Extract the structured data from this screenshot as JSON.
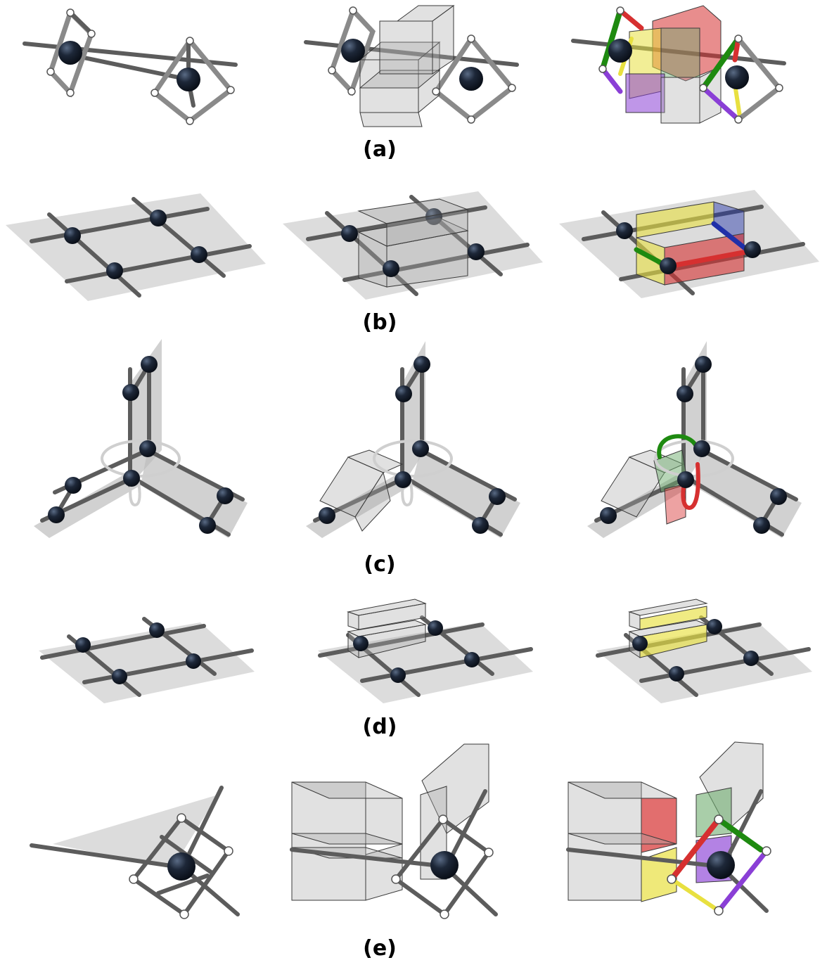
{
  "figure": {
    "rows": [
      {
        "id": "a",
        "label": "(a)"
      },
      {
        "id": "b",
        "label": "(b)"
      },
      {
        "id": "c",
        "label": "(c)"
      },
      {
        "id": "d",
        "label": "(d)"
      },
      {
        "id": "e",
        "label": "(e)"
      }
    ],
    "colors": {
      "atom": "#1d2738",
      "green": "#1e8a10",
      "red": "#d63030",
      "yellow": "#e8e040",
      "purple": "#8a3fd6",
      "blue": "#2030a8",
      "grey_plane": "#d6d6d6"
    }
  }
}
